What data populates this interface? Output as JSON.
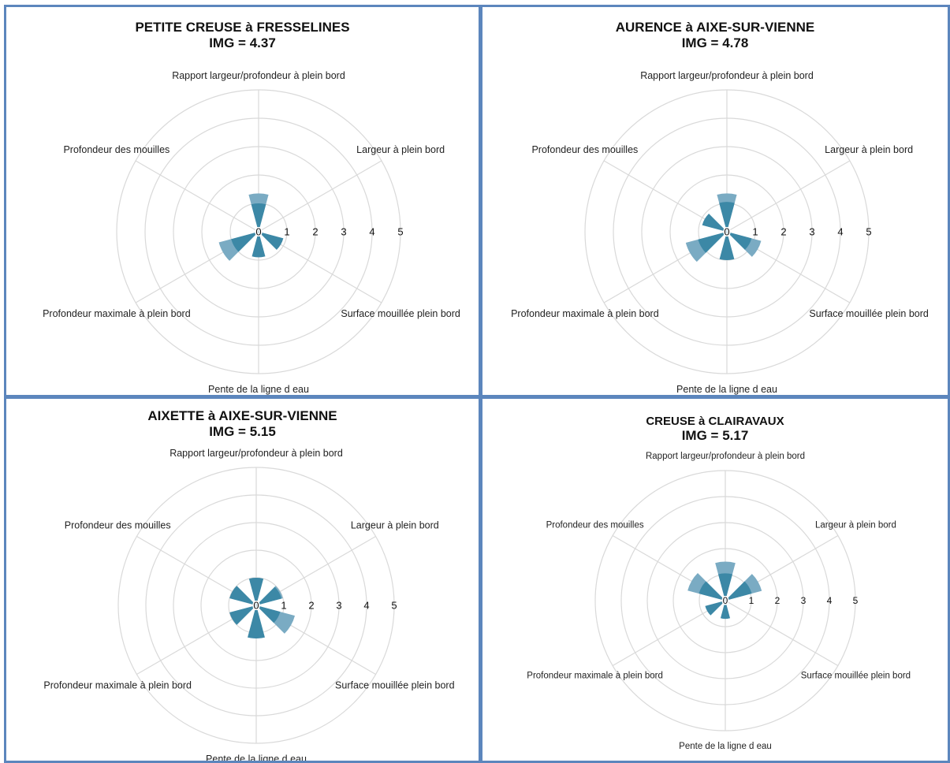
{
  "chart_data": [
    {
      "type": "polar-area",
      "title": "PETITE CREUSE à FRESSELINES",
      "img_label": "IMG = ",
      "img_value": "4.37",
      "axes": [
        "Rapport largeur/profondeur à plein bord",
        "Largeur à plein bord",
        "Surface mouillée plein bord",
        "Pente de la ligne d eau",
        "Profondeur maximale à plein bord",
        "Profondeur des mouilles"
      ],
      "ticks": [
        "0",
        "1",
        "2",
        "3",
        "4",
        "5"
      ],
      "rlim": [
        0,
        5
      ],
      "series": [
        {
          "values": [
            1.0,
            0.0,
            0.9,
            0.9,
            1.0,
            0.0
          ]
        },
        {
          "values": [
            1.35,
            0.0,
            0.9,
            0.9,
            1.45,
            0.0
          ]
        }
      ]
    },
    {
      "type": "polar-area",
      "title": "AURENCE à AIXE-SUR-VIENNE",
      "img_label": "IMG = ",
      "img_value": "4.78",
      "axes": [
        "Rapport largeur/profondeur à plein bord",
        "Largeur à plein bord",
        "Surface mouillée plein bord",
        "Pente de la ligne d eau",
        "Profondeur maximale à plein bord",
        "Profondeur des mouilles"
      ],
      "ticks": [
        "0",
        "1",
        "2",
        "3",
        "4",
        "5"
      ],
      "rlim": [
        0,
        5
      ],
      "series": [
        {
          "values": [
            1.05,
            0.0,
            0.9,
            1.0,
            1.05,
            0.9
          ]
        },
        {
          "values": [
            1.35,
            0.0,
            1.25,
            1.0,
            1.5,
            0.9
          ]
        }
      ]
    },
    {
      "type": "polar-area",
      "title": "AIXETTE à AIXE-SUR-VIENNE",
      "img_label": "IMG = ",
      "img_value": "5.15",
      "axes": [
        "Rapport largeur/profondeur à plein bord",
        "Largeur à plein bord",
        "Surface mouillée plein bord",
        "Pente de la ligne d eau",
        "Profondeur maximale à plein bord",
        "Profondeur des mouilles"
      ],
      "ticks": [
        "0",
        "1",
        "2",
        "3",
        "4",
        "5"
      ],
      "rlim": [
        0,
        5
      ],
      "series": [
        {
          "values": [
            1.0,
            0.95,
            0.9,
            1.2,
            1.0,
            1.0
          ]
        },
        {
          "values": [
            1.0,
            1.0,
            1.45,
            1.2,
            1.0,
            1.0
          ]
        }
      ]
    },
    {
      "type": "polar-area",
      "title": "CREUSE à CLAIRAVAUX",
      "img_label": "IMG = ",
      "img_value": "5.17",
      "axes": [
        "Rapport largeur/profondeur à plein bord",
        "Largeur à plein bord",
        "Surface mouillée plein bord",
        "Pente de la ligne d eau",
        "Profondeur maximale à plein bord",
        "Profondeur des mouilles"
      ],
      "ticks": [
        "0",
        "1",
        "2",
        "3",
        "4",
        "5"
      ],
      "rlim": [
        0,
        5
      ],
      "series": [
        {
          "values": [
            1.05,
            1.05,
            0.0,
            0.7,
            0.8,
            1.05
          ]
        },
        {
          "values": [
            1.5,
            1.45,
            0.0,
            0.7,
            0.8,
            1.5
          ]
        }
      ]
    }
  ],
  "colors": {
    "inner": "#3c88a6",
    "outer": "#7aabc3",
    "grid": "#d9d9d9",
    "frame": "#5c86bd"
  }
}
